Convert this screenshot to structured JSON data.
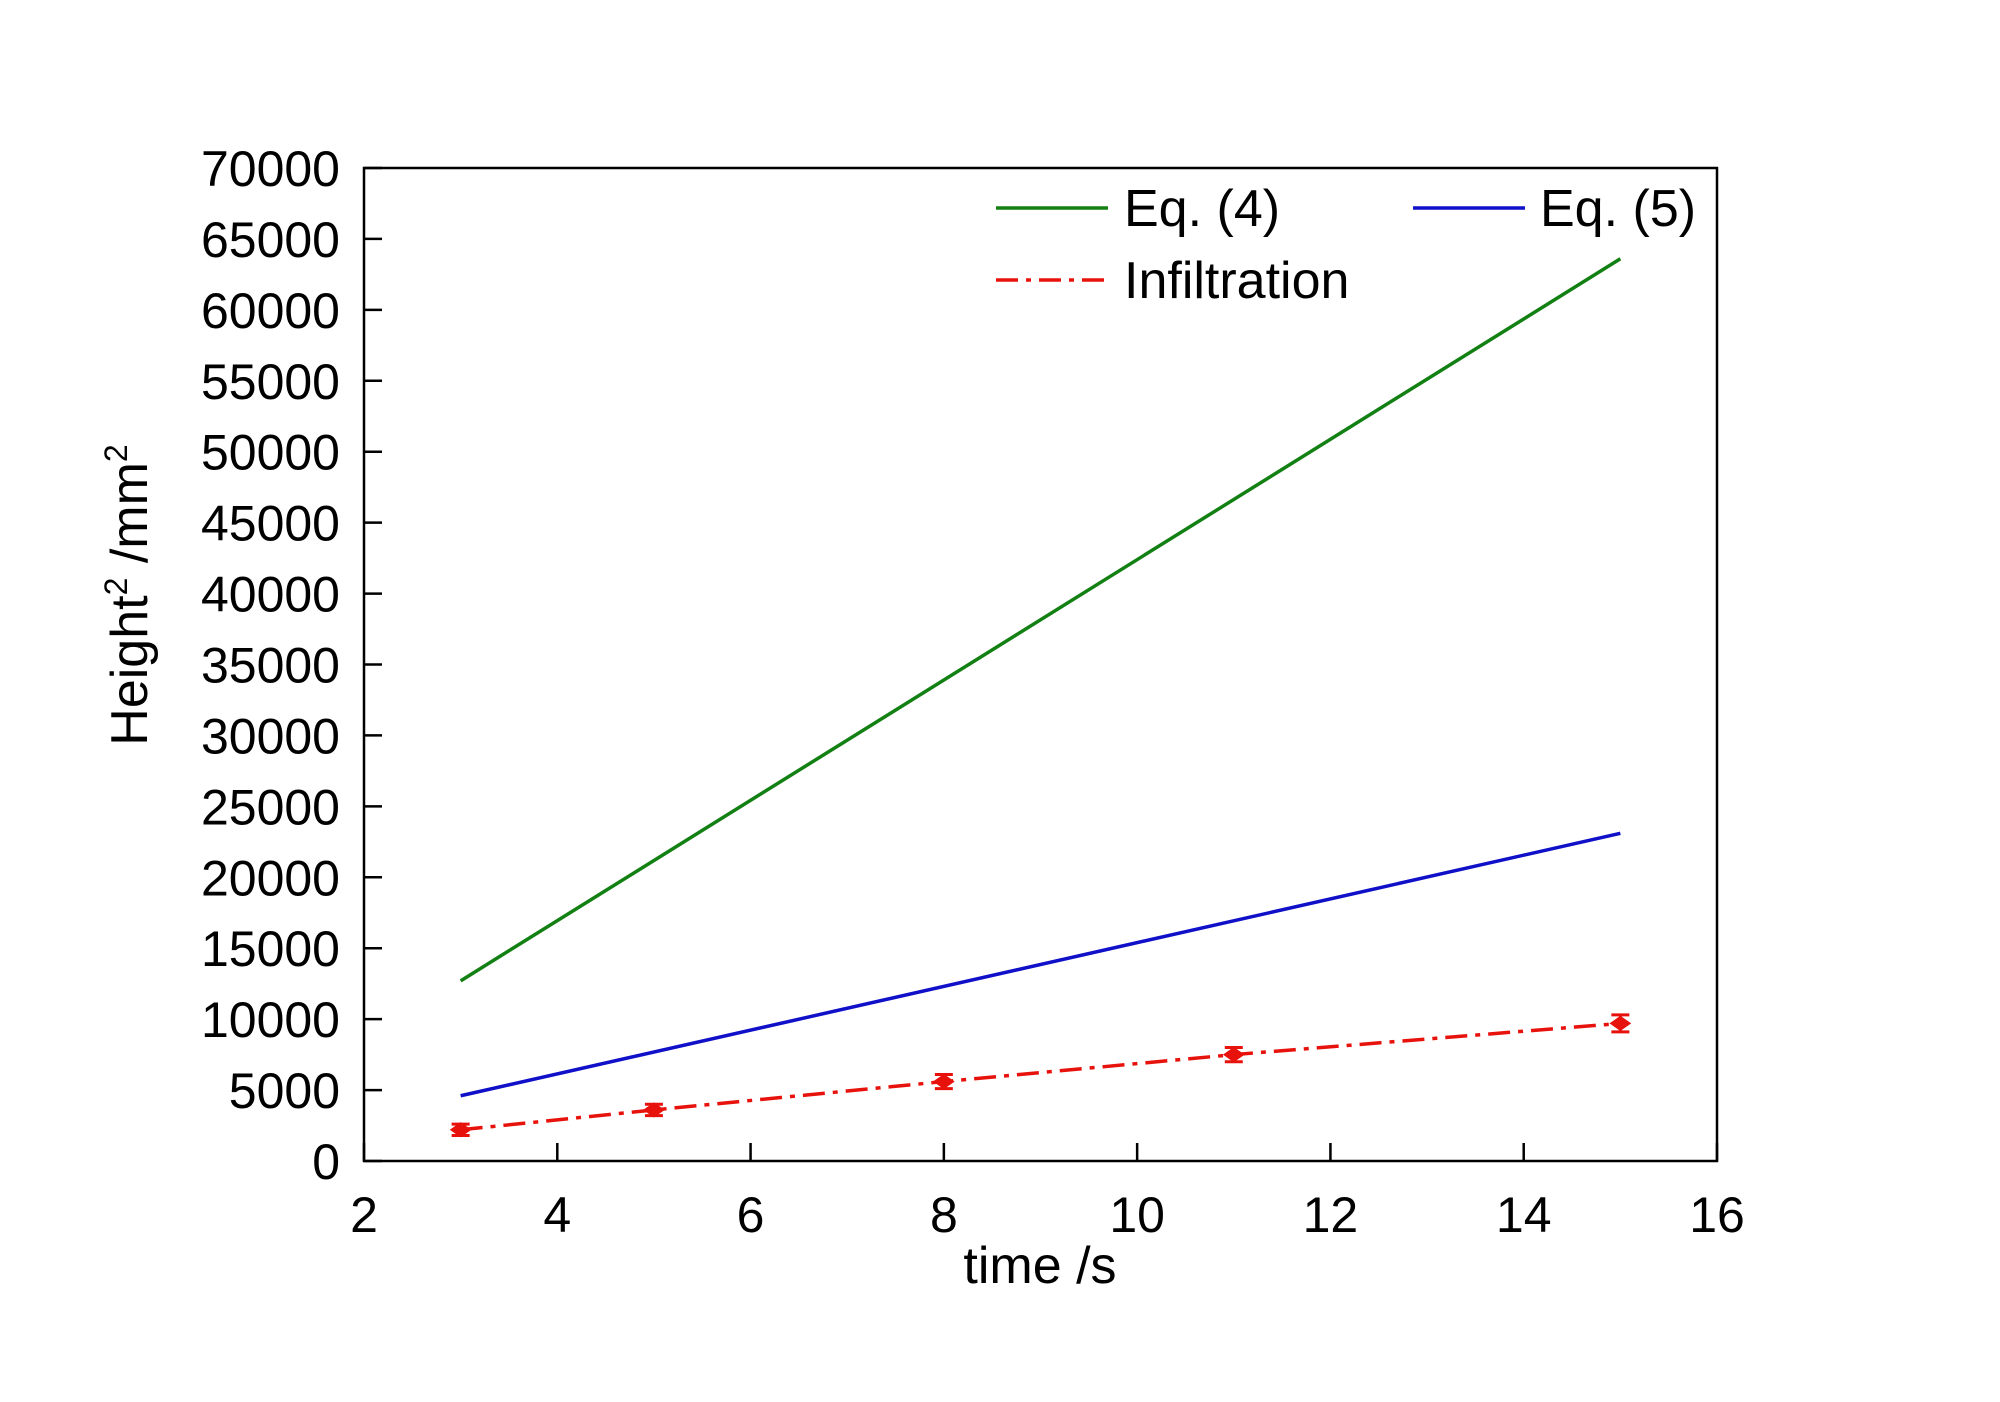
{
  "chart_data": {
    "type": "line",
    "title": "",
    "xlabel": "time /s",
    "ylabel": {
      "base": "Height",
      "sup1": "2",
      "mid": " /mm",
      "sup2": "2"
    },
    "xlim": [
      2,
      16
    ],
    "ylim": [
      0,
      70000
    ],
    "xticks": [
      2,
      4,
      6,
      8,
      10,
      12,
      14,
      16
    ],
    "yticks": [
      0,
      5000,
      10000,
      15000,
      20000,
      25000,
      30000,
      35000,
      40000,
      45000,
      50000,
      55000,
      60000,
      65000,
      70000
    ],
    "grid": false,
    "legend_position": "top-right",
    "series": [
      {
        "name": "Eq. (4)",
        "color": "#138013",
        "style": "solid",
        "markers": false,
        "x": [
          3,
          15
        ],
        "y": [
          12700,
          63600
        ]
      },
      {
        "name": "Eq. (5)",
        "color": "#1010c8",
        "style": "solid",
        "markers": false,
        "x": [
          3,
          15
        ],
        "y": [
          4600,
          23100
        ]
      },
      {
        "name": "Infiltration",
        "color": "#e8120c",
        "style": "dashdot",
        "markers": true,
        "x": [
          3,
          5,
          8,
          11,
          15
        ],
        "y": [
          2200,
          3600,
          5600,
          7500,
          9700
        ],
        "err": [
          400,
          400,
          500,
          500,
          600
        ]
      }
    ]
  }
}
